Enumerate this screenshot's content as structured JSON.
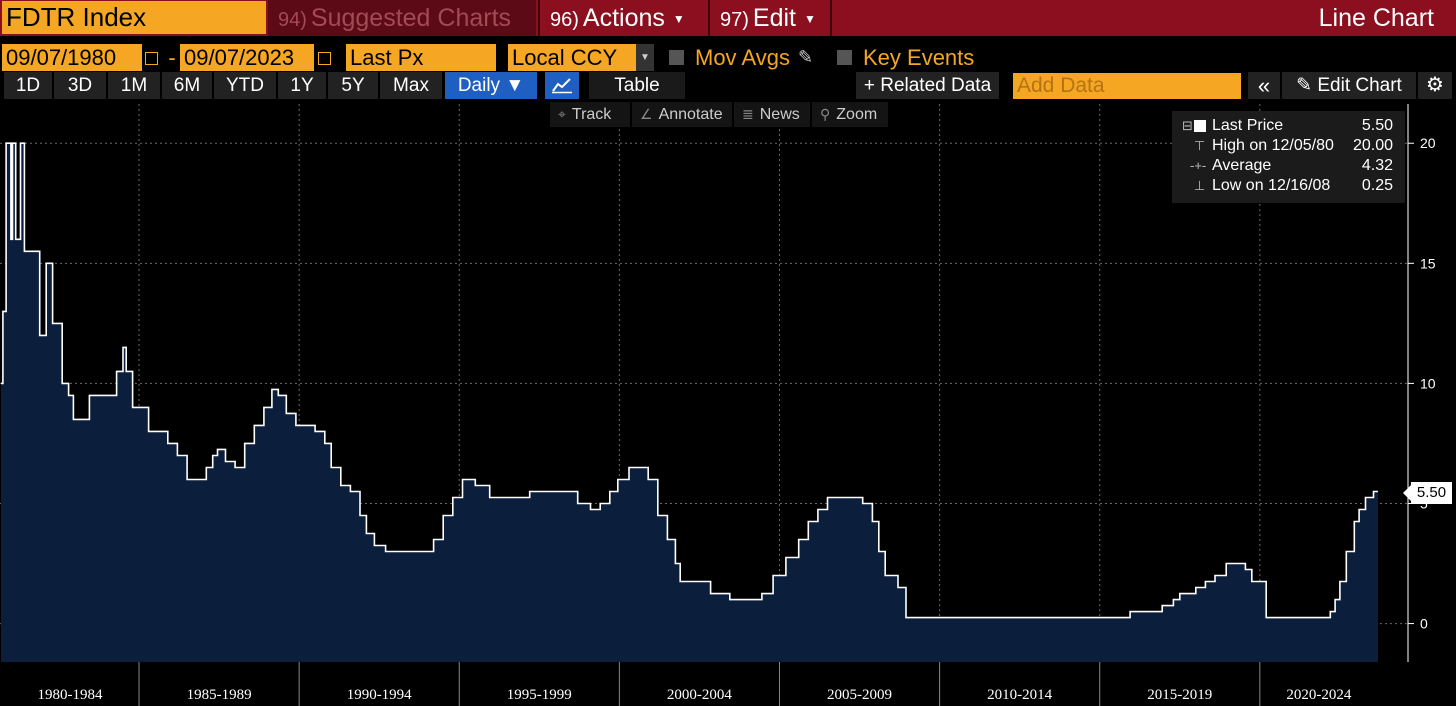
{
  "header": {
    "ticker": "FDTR Index",
    "suggested_num": "94)",
    "suggested_label": "Suggested Charts",
    "actions_num": "96)",
    "actions_label": "Actions",
    "edit_num": "97)",
    "edit_label": "Edit",
    "chart_type_label": "Line Chart"
  },
  "options": {
    "start_date": "09/07/1980",
    "end_date": "09/07/2023",
    "date_separator": "-",
    "field": "Last Px",
    "currency": "Local CCY",
    "mov_avgs": "Mov Avgs",
    "key_events": "Key Events"
  },
  "range_buttons": [
    "1D",
    "3D",
    "1M",
    "6M",
    "YTD",
    "1Y",
    "5Y",
    "Max"
  ],
  "frequency": "Daily ▼",
  "table_label": "Table",
  "related_data_label": "+ Related Data",
  "add_data_placeholder": "Add Data",
  "collapse_label": "«",
  "edit_chart_label": "Edit Chart",
  "tools": {
    "track": "Track",
    "annotate": "Annotate",
    "news": "News",
    "zoom": "Zoom"
  },
  "legend": {
    "last_price_label": "Last Price",
    "last_price_value": "5.50",
    "high_label": "High on 12/05/80",
    "high_value": "20.00",
    "average_label": "Average",
    "average_value": "4.32",
    "low_label": "Low on 12/16/08",
    "low_value": "0.25"
  },
  "colors": {
    "accent_orange": "#f5a623",
    "header_red": "#8b0f1f",
    "area_fill": "#0b1f3d",
    "line": "#ffffff",
    "selected_blue": "#1f5fc2"
  },
  "chart_data": {
    "type": "area",
    "title": "",
    "xlabel": "",
    "ylabel": "",
    "x_range": [
      1980.69,
      2023.69
    ],
    "ylim": [
      -1.6,
      21.8
    ],
    "y_ticks": [
      0,
      5,
      10,
      15,
      20
    ],
    "x_tick_labels": [
      "1980-1984",
      "1985-1989",
      "1990-1994",
      "1995-1999",
      "2000-2004",
      "2005-2009",
      "2010-2014",
      "2015-2019",
      "2020-2024"
    ],
    "last_value_label": "5.50",
    "grid": true,
    "series": [
      {
        "values": [
          [
            1980.69,
            10.0
          ],
          [
            1980.75,
            13.0
          ],
          [
            1980.85,
            20.0
          ],
          [
            1981.0,
            16.0
          ],
          [
            1981.05,
            20.0
          ],
          [
            1981.15,
            16.0
          ],
          [
            1981.3,
            20.0
          ],
          [
            1981.42,
            15.5
          ],
          [
            1981.9,
            12.0
          ],
          [
            1982.1,
            15.0
          ],
          [
            1982.3,
            12.5
          ],
          [
            1982.6,
            10.0
          ],
          [
            1982.8,
            9.5
          ],
          [
            1982.95,
            8.5
          ],
          [
            1983.3,
            8.5
          ],
          [
            1983.45,
            9.5
          ],
          [
            1984.1,
            9.5
          ],
          [
            1984.3,
            10.5
          ],
          [
            1984.5,
            11.5
          ],
          [
            1984.6,
            10.5
          ],
          [
            1984.8,
            9.0
          ],
          [
            1985.3,
            8.0
          ],
          [
            1985.9,
            7.5
          ],
          [
            1986.2,
            7.0
          ],
          [
            1986.5,
            6.0
          ],
          [
            1986.9,
            6.0
          ],
          [
            1987.1,
            6.5
          ],
          [
            1987.3,
            7.0
          ],
          [
            1987.45,
            7.25
          ],
          [
            1987.7,
            6.75
          ],
          [
            1988.0,
            6.5
          ],
          [
            1988.3,
            7.5
          ],
          [
            1988.6,
            8.25
          ],
          [
            1988.9,
            9.0
          ],
          [
            1989.15,
            9.75
          ],
          [
            1989.35,
            9.5
          ],
          [
            1989.6,
            8.75
          ],
          [
            1989.9,
            8.25
          ],
          [
            1990.5,
            8.0
          ],
          [
            1990.8,
            7.5
          ],
          [
            1991.0,
            6.5
          ],
          [
            1991.3,
            5.75
          ],
          [
            1991.6,
            5.5
          ],
          [
            1991.9,
            4.5
          ],
          [
            1992.1,
            3.75
          ],
          [
            1992.35,
            3.25
          ],
          [
            1992.7,
            3.0
          ],
          [
            1994.0,
            3.0
          ],
          [
            1994.2,
            3.5
          ],
          [
            1994.5,
            4.5
          ],
          [
            1994.8,
            5.25
          ],
          [
            1995.1,
            6.0
          ],
          [
            1995.5,
            5.75
          ],
          [
            1995.95,
            5.25
          ],
          [
            1997.2,
            5.5
          ],
          [
            1998.7,
            5.0
          ],
          [
            1999.1,
            4.75
          ],
          [
            1999.4,
            5.0
          ],
          [
            1999.7,
            5.5
          ],
          [
            1999.95,
            6.0
          ],
          [
            2000.3,
            6.5
          ],
          [
            2000.9,
            6.0
          ],
          [
            2001.2,
            4.5
          ],
          [
            2001.5,
            3.5
          ],
          [
            2001.75,
            2.5
          ],
          [
            2001.9,
            1.75
          ],
          [
            2002.85,
            1.25
          ],
          [
            2003.45,
            1.0
          ],
          [
            2004.45,
            1.25
          ],
          [
            2004.8,
            2.0
          ],
          [
            2005.2,
            2.75
          ],
          [
            2005.6,
            3.5
          ],
          [
            2005.9,
            4.25
          ],
          [
            2006.2,
            4.75
          ],
          [
            2006.5,
            5.25
          ],
          [
            2007.6,
            5.0
          ],
          [
            2007.9,
            4.25
          ],
          [
            2008.1,
            3.0
          ],
          [
            2008.3,
            2.0
          ],
          [
            2008.7,
            1.5
          ],
          [
            2008.95,
            0.25
          ],
          [
            2015.95,
            0.5
          ],
          [
            2016.95,
            0.75
          ],
          [
            2017.3,
            1.0
          ],
          [
            2017.5,
            1.25
          ],
          [
            2018.0,
            1.5
          ],
          [
            2018.3,
            1.75
          ],
          [
            2018.6,
            2.0
          ],
          [
            2018.95,
            2.5
          ],
          [
            2019.55,
            2.25
          ],
          [
            2019.75,
            1.75
          ],
          [
            2020.2,
            0.25
          ],
          [
            2022.2,
            0.5
          ],
          [
            2022.35,
            1.0
          ],
          [
            2022.5,
            1.75
          ],
          [
            2022.7,
            3.0
          ],
          [
            2022.95,
            4.25
          ],
          [
            2023.1,
            4.75
          ],
          [
            2023.3,
            5.25
          ],
          [
            2023.55,
            5.5
          ],
          [
            2023.69,
            5.5
          ]
        ]
      }
    ]
  }
}
